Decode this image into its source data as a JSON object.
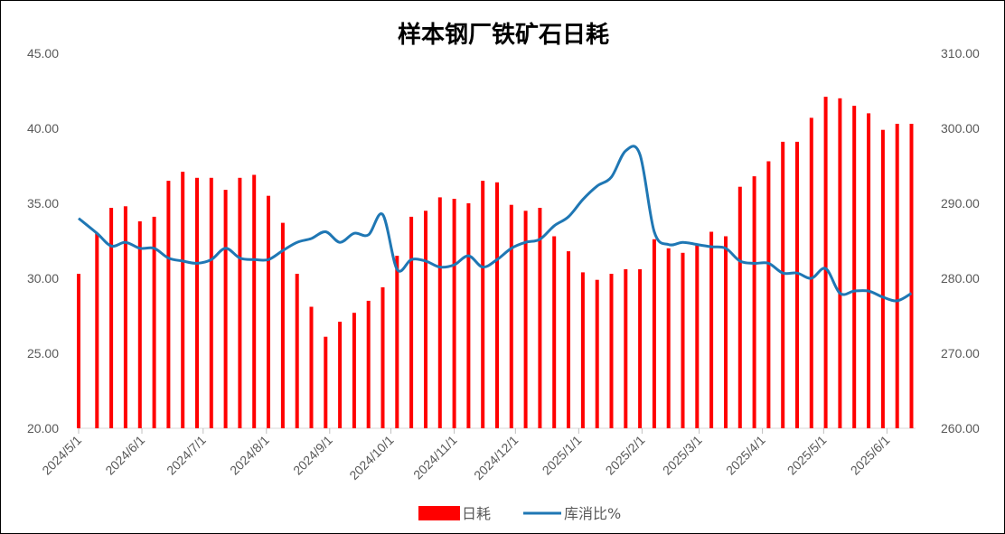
{
  "chart_data": {
    "type": "bar+line",
    "title": "样本钢厂铁矿石日耗",
    "colors": {
      "bars": "#ff0000",
      "line": "#1f77b4"
    },
    "x_ticks": [
      "2024/5/1",
      "2024/6/1",
      "2024/7/1",
      "2024/8/1",
      "2024/9/1",
      "2024/10/1",
      "2024/11/1",
      "2024/12/1",
      "2025/1/1",
      "2025/2/1",
      "2025/3/1",
      "2025/4/1",
      "2025/5/1",
      "2025/6/1"
    ],
    "x_range": [
      "2024-05-01",
      "2025-06-15"
    ],
    "y_left": {
      "min": 20,
      "max": 45,
      "ticks": [
        "20.00",
        "25.00",
        "30.00",
        "35.00",
        "40.00",
        "45.00"
      ]
    },
    "y_right": {
      "min": 260,
      "max": 310,
      "ticks": [
        "260.00",
        "270.00",
        "280.00",
        "290.00",
        "300.00",
        "310.00"
      ]
    },
    "legend": {
      "position": "bottom",
      "bar_label": "日耗",
      "line_label": "库消比%"
    },
    "bar_series": {
      "name": "日耗",
      "axis": "left",
      "points": [
        [
          "2024-05-01",
          30.3
        ],
        [
          "2024-05-10",
          33.0
        ],
        [
          "2024-05-17",
          34.7
        ],
        [
          "2024-05-24",
          34.8
        ],
        [
          "2024-05-31",
          33.8
        ],
        [
          "2024-06-07",
          34.1
        ],
        [
          "2024-06-14",
          36.5
        ],
        [
          "2024-06-21",
          37.1
        ],
        [
          "2024-06-28",
          36.7
        ],
        [
          "2024-07-05",
          36.7
        ],
        [
          "2024-07-12",
          35.9
        ],
        [
          "2024-07-19",
          36.7
        ],
        [
          "2024-07-26",
          36.9
        ],
        [
          "2024-08-02",
          35.5
        ],
        [
          "2024-08-09",
          33.7
        ],
        [
          "2024-08-16",
          30.3
        ],
        [
          "2024-08-23",
          28.1
        ],
        [
          "2024-08-30",
          26.1
        ],
        [
          "2024-09-06",
          27.1
        ],
        [
          "2024-09-13",
          27.7
        ],
        [
          "2024-09-20",
          28.5
        ],
        [
          "2024-09-27",
          29.4
        ],
        [
          "2024-10-04",
          31.5
        ],
        [
          "2024-10-11",
          34.1
        ],
        [
          "2024-10-18",
          34.5
        ],
        [
          "2024-10-25",
          35.4
        ],
        [
          "2024-11-01",
          35.3
        ],
        [
          "2024-11-08",
          35.0
        ],
        [
          "2024-11-15",
          36.5
        ],
        [
          "2024-11-22",
          36.4
        ],
        [
          "2024-11-29",
          34.9
        ],
        [
          "2024-12-06",
          34.5
        ],
        [
          "2024-12-13",
          34.7
        ],
        [
          "2024-12-20",
          32.8
        ],
        [
          "2024-12-27",
          31.8
        ],
        [
          "2025-01-03",
          30.4
        ],
        [
          "2025-01-10",
          29.9
        ],
        [
          "2025-01-17",
          30.3
        ],
        [
          "2025-01-24",
          30.6
        ],
        [
          "2025-01-31",
          30.6
        ],
        [
          "2025-02-07",
          32.6
        ],
        [
          "2025-02-14",
          32.0
        ],
        [
          "2025-02-21",
          31.7
        ],
        [
          "2025-02-28",
          32.2
        ],
        [
          "2025-03-07",
          33.1
        ],
        [
          "2025-03-14",
          32.8
        ],
        [
          "2025-03-21",
          36.1
        ],
        [
          "2025-03-28",
          36.8
        ],
        [
          "2025-04-04",
          37.8
        ],
        [
          "2025-04-11",
          39.1
        ],
        [
          "2025-04-18",
          39.1
        ],
        [
          "2025-04-25",
          40.7
        ],
        [
          "2025-05-02",
          42.1
        ],
        [
          "2025-05-09",
          42.0
        ],
        [
          "2025-05-16",
          41.5
        ],
        [
          "2025-05-23",
          41.0
        ],
        [
          "2025-05-30",
          39.9
        ],
        [
          "2025-06-06",
          40.3
        ],
        [
          "2025-06-13",
          40.3
        ]
      ]
    },
    "line_series": {
      "name": "库消比%",
      "axis": "right",
      "points": [
        [
          "2024-05-01",
          288.0
        ],
        [
          "2024-05-10",
          286.0
        ],
        [
          "2024-05-17",
          284.3
        ],
        [
          "2024-05-24",
          284.8
        ],
        [
          "2024-05-31",
          284.0
        ],
        [
          "2024-06-07",
          284.0
        ],
        [
          "2024-06-14",
          282.7
        ],
        [
          "2024-06-21",
          282.3
        ],
        [
          "2024-06-28",
          282.0
        ],
        [
          "2024-07-05",
          282.5
        ],
        [
          "2024-07-12",
          284.0
        ],
        [
          "2024-07-19",
          282.7
        ],
        [
          "2024-07-26",
          282.5
        ],
        [
          "2024-08-02",
          282.5
        ],
        [
          "2024-08-09",
          283.7
        ],
        [
          "2024-08-16",
          284.8
        ],
        [
          "2024-08-23",
          285.3
        ],
        [
          "2024-08-30",
          286.2
        ],
        [
          "2024-09-06",
          284.8
        ],
        [
          "2024-09-13",
          286.0
        ],
        [
          "2024-09-20",
          285.8
        ],
        [
          "2024-09-27",
          288.5
        ],
        [
          "2024-10-04",
          281.2
        ],
        [
          "2024-10-11",
          282.5
        ],
        [
          "2024-10-18",
          282.3
        ],
        [
          "2024-10-25",
          281.5
        ],
        [
          "2024-11-01",
          281.8
        ],
        [
          "2024-11-08",
          283.0
        ],
        [
          "2024-11-15",
          281.5
        ],
        [
          "2024-11-22",
          282.5
        ],
        [
          "2024-11-29",
          284.0
        ],
        [
          "2024-12-06",
          284.8
        ],
        [
          "2024-12-13",
          285.2
        ],
        [
          "2024-12-20",
          287.0
        ],
        [
          "2024-12-27",
          288.2
        ],
        [
          "2025-01-03",
          290.5
        ],
        [
          "2025-01-10",
          292.3
        ],
        [
          "2025-01-17",
          293.5
        ],
        [
          "2025-01-24",
          297.0
        ],
        [
          "2025-01-31",
          296.5
        ],
        [
          "2025-02-07",
          286.2
        ],
        [
          "2025-02-14",
          284.5
        ],
        [
          "2025-02-21",
          284.8
        ],
        [
          "2025-02-28",
          284.5
        ],
        [
          "2025-03-07",
          284.2
        ],
        [
          "2025-03-14",
          284.0
        ],
        [
          "2025-03-21",
          282.3
        ],
        [
          "2025-03-28",
          282.0
        ],
        [
          "2025-04-04",
          282.0
        ],
        [
          "2025-04-11",
          280.7
        ],
        [
          "2025-04-18",
          280.7
        ],
        [
          "2025-04-25",
          280.0
        ],
        [
          "2025-05-02",
          281.3
        ],
        [
          "2025-05-09",
          278.0
        ],
        [
          "2025-05-16",
          278.3
        ],
        [
          "2025-05-23",
          278.3
        ],
        [
          "2025-05-30",
          277.5
        ],
        [
          "2025-06-06",
          277.0
        ],
        [
          "2025-06-13",
          278.0
        ]
      ]
    }
  }
}
